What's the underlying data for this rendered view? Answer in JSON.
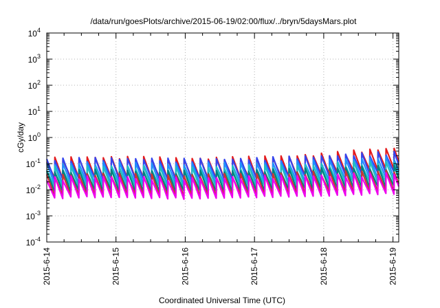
{
  "chart_data": {
    "type": "line",
    "title": "/data/run/goesPlots/archive/2015-06-19/02:00/flux/../bryn/5daysMars.plot",
    "xlabel": "Coordinated Universal Time (UTC)",
    "ylabel": "cGy/day",
    "y_scale": "log",
    "ylim": [
      0.0001,
      10000
    ],
    "xlim": [
      "2015-06-14 00:00",
      "2015-06-19 02:00"
    ],
    "grid": true,
    "x_ticks": [
      "2015-6-14",
      "2015-6-15",
      "2015-6-16",
      "2015-6-17",
      "2015-6-18",
      "2015-6-19"
    ],
    "y_ticks": [
      {
        "base": "10",
        "exp": "-4"
      },
      {
        "base": "10",
        "exp": "-3"
      },
      {
        "base": "10",
        "exp": "-2"
      },
      {
        "base": "10",
        "exp": "-1"
      },
      {
        "base": "10",
        "exp": "0"
      },
      {
        "base": "10",
        "exp": "1"
      },
      {
        "base": "10",
        "exp": "2"
      },
      {
        "base": "10",
        "exp": "3"
      },
      {
        "base": "10",
        "exp": "4"
      }
    ],
    "x": [
      "2015-06-14 00:00",
      "2015-06-14 12:00",
      "2015-06-15 00:00",
      "2015-06-15 12:00",
      "2015-06-16 00:00",
      "2015-06-16 12:00",
      "2015-06-17 00:00",
      "2015-06-17 12:00",
      "2015-06-18 00:00",
      "2015-06-18 12:00",
      "2015-06-19 00:00",
      "2015-06-19 02:00"
    ],
    "series": [
      {
        "color": "#e41a1c",
        "values": [
          0.04,
          0.045,
          0.045,
          0.043,
          0.04,
          0.042,
          0.045,
          0.05,
          0.06,
          0.08,
          0.1,
          0.09
        ]
      },
      {
        "color": "#3344ee",
        "values": [
          0.037,
          0.04,
          0.04,
          0.039,
          0.037,
          0.038,
          0.04,
          0.045,
          0.05,
          0.06,
          0.07,
          0.065
        ]
      },
      {
        "color": "#1e90ff",
        "values": [
          0.025,
          0.027,
          0.027,
          0.026,
          0.025,
          0.026,
          0.027,
          0.03,
          0.033,
          0.04,
          0.045,
          0.04
        ]
      },
      {
        "color": "#20c0c0",
        "values": [
          0.018,
          0.02,
          0.02,
          0.019,
          0.018,
          0.019,
          0.02,
          0.022,
          0.024,
          0.028,
          0.03,
          0.028
        ]
      },
      {
        "color": "#008080",
        "values": [
          0.013,
          0.014,
          0.014,
          0.013,
          0.013,
          0.013,
          0.014,
          0.015,
          0.017,
          0.019,
          0.02,
          0.019
        ]
      },
      {
        "color": "#cc3333",
        "values": [
          0.009,
          0.01,
          0.01,
          0.0095,
          0.009,
          0.0095,
          0.01,
          0.011,
          0.012,
          0.013,
          0.014,
          0.013
        ]
      },
      {
        "color": "#ee00ee",
        "values": [
          0.007,
          0.008,
          0.008,
          0.0075,
          0.007,
          0.0075,
          0.008,
          0.0085,
          0.009,
          0.01,
          0.011,
          0.01
        ]
      }
    ]
  }
}
